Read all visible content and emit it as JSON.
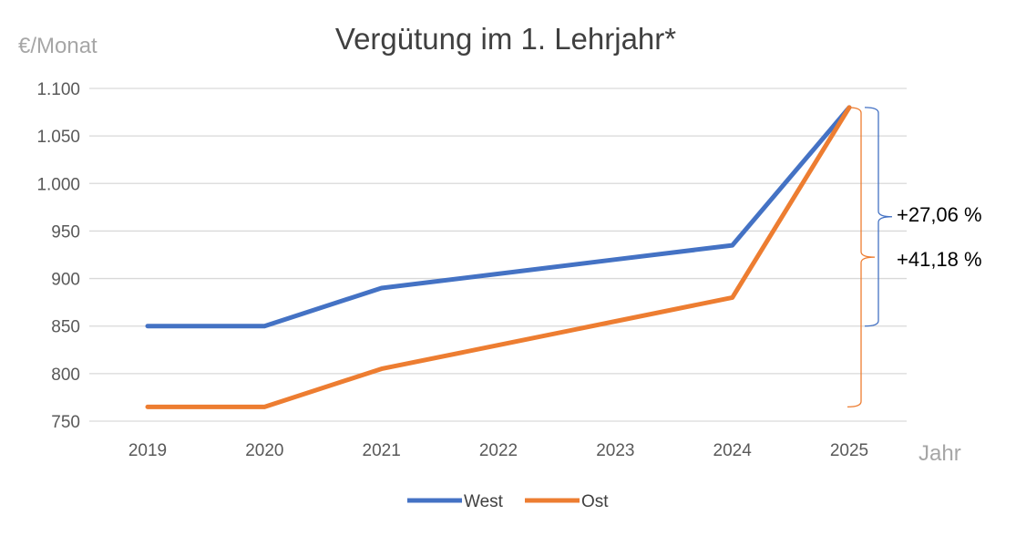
{
  "chart_data": {
    "type": "line",
    "title": "Vergütung im  1. Lehrjahr*",
    "ylabel": "€/Monat",
    "xlabel": "Jahr",
    "x": [
      "2019",
      "2020",
      "2021",
      "2022",
      "2023",
      "2024",
      "2025"
    ],
    "ylim": [
      750,
      1100
    ],
    "yticks": [
      {
        "value": 750,
        "label": "750"
      },
      {
        "value": 800,
        "label": "800"
      },
      {
        "value": 850,
        "label": "850"
      },
      {
        "value": 900,
        "label": "900"
      },
      {
        "value": 950,
        "label": "950"
      },
      {
        "value": 1000,
        "label": "1.000"
      },
      {
        "value": 1050,
        "label": "1.050"
      },
      {
        "value": 1100,
        "label": "1.100"
      }
    ],
    "grid": true,
    "legend_position": "bottom",
    "series": [
      {
        "name": "West",
        "color": "#4472c4",
        "values": [
          850,
          850,
          890,
          905,
          920,
          935,
          1080
        ]
      },
      {
        "name": "Ost",
        "color": "#ed7d31",
        "values": [
          765,
          765,
          805,
          830,
          855,
          880,
          1080
        ]
      }
    ],
    "annotations": [
      {
        "series": "West",
        "label": "+27,06 %",
        "from": 850,
        "to": 1080
      },
      {
        "series": "Ost",
        "label": "+41,18 %",
        "from": 765,
        "to": 1080
      }
    ]
  }
}
